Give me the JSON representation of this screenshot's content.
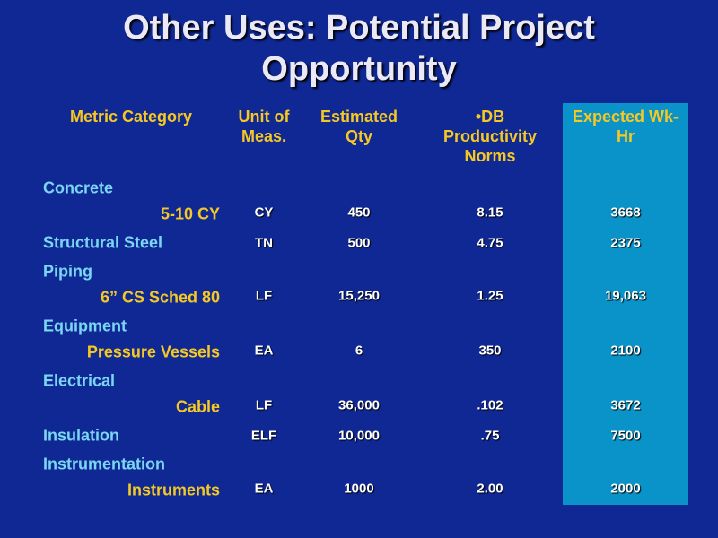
{
  "title": "Other Uses: Potential Project Opportunity",
  "table": {
    "headers": [
      "Metric Category",
      "Unit of Meas.",
      "Estimated Qty",
      "•DB Productivity Norms",
      "Expected Wk-Hr"
    ],
    "rows": [
      {
        "category": "Concrete",
        "item": "5-10 CY",
        "cells": [
          "CY",
          "450",
          "8.15",
          "3668"
        ]
      },
      {
        "category": "Structural Steel",
        "cells": [
          "TN",
          "500",
          "4.75",
          "2375"
        ]
      },
      {
        "category": "Piping",
        "item": "6” CS Sched 80",
        "cells": [
          "LF",
          "15,250",
          "1.25",
          "19,063"
        ]
      },
      {
        "category": "Equipment",
        "item": "Pressure Vessels",
        "cells": [
          "EA",
          "6",
          "350",
          "2100"
        ]
      },
      {
        "category": "Electrical",
        "item": "Cable",
        "cells": [
          "LF",
          "36,000",
          ".102",
          "3672"
        ]
      },
      {
        "category": "Insulation",
        "cells": [
          "ELF",
          "10,000",
          ".75",
          "7500"
        ]
      },
      {
        "category": "Instrumentation",
        "item": "Instruments",
        "cells": [
          "EA",
          "1000",
          "2.00",
          "2000"
        ]
      }
    ]
  }
}
